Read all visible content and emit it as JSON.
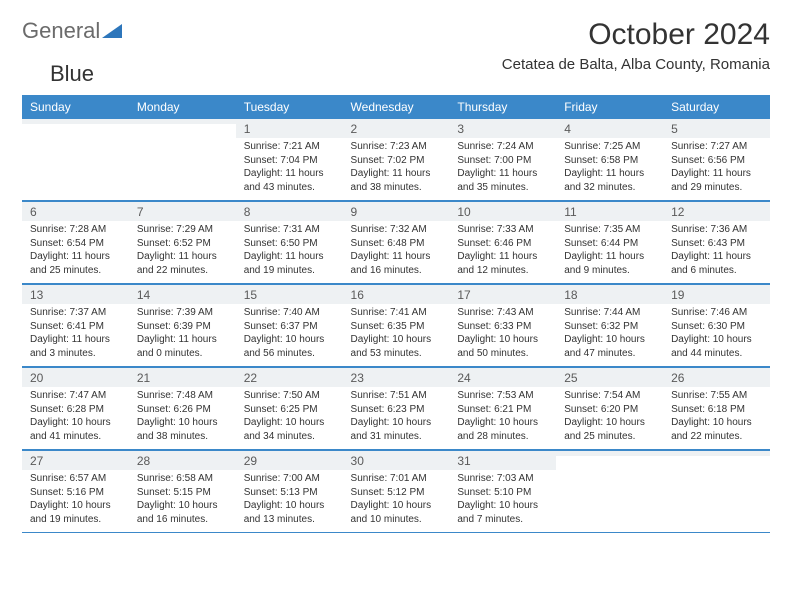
{
  "logo": {
    "text1": "General",
    "text2": "Blue"
  },
  "title": "October 2024",
  "location": "Cetatea de Balta, Alba County, Romania",
  "colors": {
    "header_bg": "#3b88c9",
    "header_text": "#ffffff",
    "daynum_bg": "#eef1f3",
    "border": "#3b88c9"
  },
  "day_headers": [
    "Sunday",
    "Monday",
    "Tuesday",
    "Wednesday",
    "Thursday",
    "Friday",
    "Saturday"
  ],
  "weeks": [
    [
      null,
      null,
      {
        "n": "1",
        "sr": "Sunrise: 7:21 AM",
        "ss": "Sunset: 7:04 PM",
        "d1": "Daylight: 11 hours",
        "d2": "and 43 minutes."
      },
      {
        "n": "2",
        "sr": "Sunrise: 7:23 AM",
        "ss": "Sunset: 7:02 PM",
        "d1": "Daylight: 11 hours",
        "d2": "and 38 minutes."
      },
      {
        "n": "3",
        "sr": "Sunrise: 7:24 AM",
        "ss": "Sunset: 7:00 PM",
        "d1": "Daylight: 11 hours",
        "d2": "and 35 minutes."
      },
      {
        "n": "4",
        "sr": "Sunrise: 7:25 AM",
        "ss": "Sunset: 6:58 PM",
        "d1": "Daylight: 11 hours",
        "d2": "and 32 minutes."
      },
      {
        "n": "5",
        "sr": "Sunrise: 7:27 AM",
        "ss": "Sunset: 6:56 PM",
        "d1": "Daylight: 11 hours",
        "d2": "and 29 minutes."
      }
    ],
    [
      {
        "n": "6",
        "sr": "Sunrise: 7:28 AM",
        "ss": "Sunset: 6:54 PM",
        "d1": "Daylight: 11 hours",
        "d2": "and 25 minutes."
      },
      {
        "n": "7",
        "sr": "Sunrise: 7:29 AM",
        "ss": "Sunset: 6:52 PM",
        "d1": "Daylight: 11 hours",
        "d2": "and 22 minutes."
      },
      {
        "n": "8",
        "sr": "Sunrise: 7:31 AM",
        "ss": "Sunset: 6:50 PM",
        "d1": "Daylight: 11 hours",
        "d2": "and 19 minutes."
      },
      {
        "n": "9",
        "sr": "Sunrise: 7:32 AM",
        "ss": "Sunset: 6:48 PM",
        "d1": "Daylight: 11 hours",
        "d2": "and 16 minutes."
      },
      {
        "n": "10",
        "sr": "Sunrise: 7:33 AM",
        "ss": "Sunset: 6:46 PM",
        "d1": "Daylight: 11 hours",
        "d2": "and 12 minutes."
      },
      {
        "n": "11",
        "sr": "Sunrise: 7:35 AM",
        "ss": "Sunset: 6:44 PM",
        "d1": "Daylight: 11 hours",
        "d2": "and 9 minutes."
      },
      {
        "n": "12",
        "sr": "Sunrise: 7:36 AM",
        "ss": "Sunset: 6:43 PM",
        "d1": "Daylight: 11 hours",
        "d2": "and 6 minutes."
      }
    ],
    [
      {
        "n": "13",
        "sr": "Sunrise: 7:37 AM",
        "ss": "Sunset: 6:41 PM",
        "d1": "Daylight: 11 hours",
        "d2": "and 3 minutes."
      },
      {
        "n": "14",
        "sr": "Sunrise: 7:39 AM",
        "ss": "Sunset: 6:39 PM",
        "d1": "Daylight: 11 hours",
        "d2": "and 0 minutes."
      },
      {
        "n": "15",
        "sr": "Sunrise: 7:40 AM",
        "ss": "Sunset: 6:37 PM",
        "d1": "Daylight: 10 hours",
        "d2": "and 56 minutes."
      },
      {
        "n": "16",
        "sr": "Sunrise: 7:41 AM",
        "ss": "Sunset: 6:35 PM",
        "d1": "Daylight: 10 hours",
        "d2": "and 53 minutes."
      },
      {
        "n": "17",
        "sr": "Sunrise: 7:43 AM",
        "ss": "Sunset: 6:33 PM",
        "d1": "Daylight: 10 hours",
        "d2": "and 50 minutes."
      },
      {
        "n": "18",
        "sr": "Sunrise: 7:44 AM",
        "ss": "Sunset: 6:32 PM",
        "d1": "Daylight: 10 hours",
        "d2": "and 47 minutes."
      },
      {
        "n": "19",
        "sr": "Sunrise: 7:46 AM",
        "ss": "Sunset: 6:30 PM",
        "d1": "Daylight: 10 hours",
        "d2": "and 44 minutes."
      }
    ],
    [
      {
        "n": "20",
        "sr": "Sunrise: 7:47 AM",
        "ss": "Sunset: 6:28 PM",
        "d1": "Daylight: 10 hours",
        "d2": "and 41 minutes."
      },
      {
        "n": "21",
        "sr": "Sunrise: 7:48 AM",
        "ss": "Sunset: 6:26 PM",
        "d1": "Daylight: 10 hours",
        "d2": "and 38 minutes."
      },
      {
        "n": "22",
        "sr": "Sunrise: 7:50 AM",
        "ss": "Sunset: 6:25 PM",
        "d1": "Daylight: 10 hours",
        "d2": "and 34 minutes."
      },
      {
        "n": "23",
        "sr": "Sunrise: 7:51 AM",
        "ss": "Sunset: 6:23 PM",
        "d1": "Daylight: 10 hours",
        "d2": "and 31 minutes."
      },
      {
        "n": "24",
        "sr": "Sunrise: 7:53 AM",
        "ss": "Sunset: 6:21 PM",
        "d1": "Daylight: 10 hours",
        "d2": "and 28 minutes."
      },
      {
        "n": "25",
        "sr": "Sunrise: 7:54 AM",
        "ss": "Sunset: 6:20 PM",
        "d1": "Daylight: 10 hours",
        "d2": "and 25 minutes."
      },
      {
        "n": "26",
        "sr": "Sunrise: 7:55 AM",
        "ss": "Sunset: 6:18 PM",
        "d1": "Daylight: 10 hours",
        "d2": "and 22 minutes."
      }
    ],
    [
      {
        "n": "27",
        "sr": "Sunrise: 6:57 AM",
        "ss": "Sunset: 5:16 PM",
        "d1": "Daylight: 10 hours",
        "d2": "and 19 minutes."
      },
      {
        "n": "28",
        "sr": "Sunrise: 6:58 AM",
        "ss": "Sunset: 5:15 PM",
        "d1": "Daylight: 10 hours",
        "d2": "and 16 minutes."
      },
      {
        "n": "29",
        "sr": "Sunrise: 7:00 AM",
        "ss": "Sunset: 5:13 PM",
        "d1": "Daylight: 10 hours",
        "d2": "and 13 minutes."
      },
      {
        "n": "30",
        "sr": "Sunrise: 7:01 AM",
        "ss": "Sunset: 5:12 PM",
        "d1": "Daylight: 10 hours",
        "d2": "and 10 minutes."
      },
      {
        "n": "31",
        "sr": "Sunrise: 7:03 AM",
        "ss": "Sunset: 5:10 PM",
        "d1": "Daylight: 10 hours",
        "d2": "and 7 minutes."
      },
      null,
      null
    ]
  ]
}
